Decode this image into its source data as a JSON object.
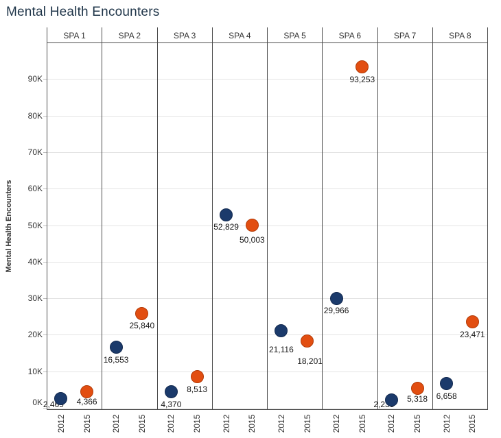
{
  "title": "Mental Health Encounters",
  "chart_data": {
    "type": "scatter",
    "title": "Mental Health Encounters",
    "xlabel": "",
    "ylabel": "Mental Health Encounters",
    "x_categories": [
      "2012",
      "2015"
    ],
    "ylim": [
      0,
      100000
    ],
    "grid": "horizontal",
    "legend_position": "none",
    "y_ticks": [
      {
        "value": 0,
        "label": "0K"
      },
      {
        "value": 10000,
        "label": "10K"
      },
      {
        "value": 20000,
        "label": "20K"
      },
      {
        "value": 30000,
        "label": "30K"
      },
      {
        "value": 40000,
        "label": "40K"
      },
      {
        "value": 50000,
        "label": "50K"
      },
      {
        "value": 60000,
        "label": "60K"
      },
      {
        "value": 70000,
        "label": "70K"
      },
      {
        "value": 80000,
        "label": "80K"
      },
      {
        "value": 90000,
        "label": "90K"
      }
    ],
    "series_colors": {
      "2012": {
        "fill": "#1b3a6b",
        "stroke": "#12294f"
      },
      "2015": {
        "fill": "#e24e11",
        "stroke": "#b23a06"
      }
    },
    "panels": [
      {
        "name": "SPA 1",
        "points": [
          {
            "x": "2012",
            "value": 2469,
            "label": "2,469"
          },
          {
            "x": "2015",
            "value": 4366,
            "label": "4,366"
          }
        ]
      },
      {
        "name": "SPA 2",
        "points": [
          {
            "x": "2012",
            "value": 16553,
            "label": "16,553"
          },
          {
            "x": "2015",
            "value": 25840,
            "label": "25,840"
          }
        ]
      },
      {
        "name": "SPA 3",
        "points": [
          {
            "x": "2012",
            "value": 4370,
            "label": "4,370"
          },
          {
            "x": "2015",
            "value": 8513,
            "label": "8,513"
          }
        ]
      },
      {
        "name": "SPA 4",
        "points": [
          {
            "x": "2012",
            "value": 52829,
            "label": "52,829"
          },
          {
            "x": "2015",
            "value": 50003,
            "label": "50,003"
          }
        ]
      },
      {
        "name": "SPA 5",
        "points": [
          {
            "x": "2012",
            "value": 21116,
            "label": "21,116"
          },
          {
            "x": "2015",
            "value": 18201,
            "label": "18,201"
          }
        ]
      },
      {
        "name": "SPA 6",
        "points": [
          {
            "x": "2012",
            "value": 29966,
            "label": "29,966"
          },
          {
            "x": "2015",
            "value": 93253,
            "label": "93,253"
          }
        ]
      },
      {
        "name": "SPA 7",
        "points": [
          {
            "x": "2012",
            "value": 2235,
            "label": "2,235"
          },
          {
            "x": "2015",
            "value": 5318,
            "label": "5,318"
          }
        ]
      },
      {
        "name": "SPA 8",
        "points": [
          {
            "x": "2012",
            "value": 6658,
            "label": "6,658"
          },
          {
            "x": "2015",
            "value": 23471,
            "label": "23,471"
          }
        ]
      }
    ],
    "label_offsets": {
      "SPA 1|2012": {
        "dx": -11,
        "dy": -10
      },
      "SPA 1|2015": {
        "dx": 0,
        "dy": -4
      },
      "SPA 4|2015": {
        "dx": 0,
        "dy": 4
      },
      "SPA 5|2012": {
        "dx": 0,
        "dy": 10
      },
      "SPA 5|2015": {
        "dx": 4,
        "dy": 11
      },
      "SPA 7|2012": {
        "dx": -11,
        "dy": -11
      },
      "SPA 7|2015": {
        "dx": 0,
        "dy": -3
      }
    }
  }
}
